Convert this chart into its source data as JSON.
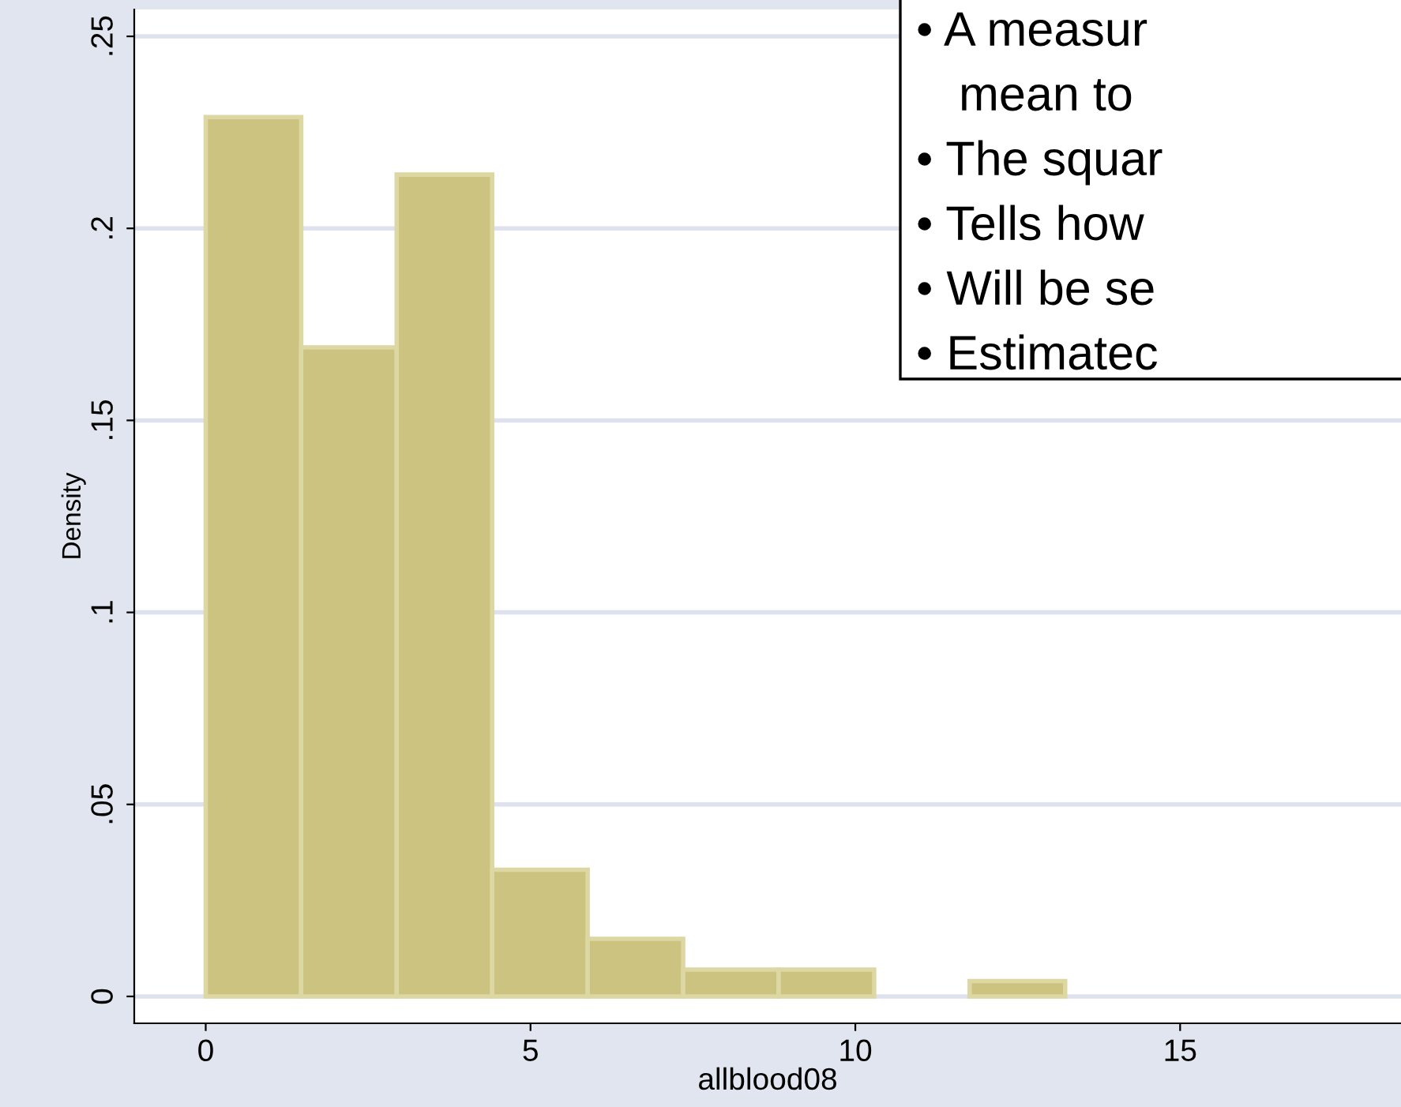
{
  "chart_data": {
    "type": "histogram",
    "xlabel": "allblood08",
    "ylabel": "Density",
    "bins": [
      0,
      1.47,
      2.94,
      4.41,
      5.88,
      7.35,
      8.82,
      10.29,
      11.76,
      13.23
    ],
    "values": [
      0.229,
      0.169,
      0.214,
      0.033,
      0.015,
      0.007,
      0.007,
      0,
      0.004
    ],
    "color": "#cbc37f",
    "xlim": [
      -1.1,
      18.4
    ],
    "xticks": [
      0,
      5,
      10,
      15
    ],
    "ylim": [
      -0.007,
      0.257
    ],
    "yticks": [
      {
        "value": 0,
        "label": "0"
      },
      {
        "value": 0.05,
        "label": ".05"
      },
      {
        "value": 0.1,
        "label": ".1"
      },
      {
        "value": 0.15,
        "label": ".15"
      },
      {
        "value": 0.2,
        "label": ".2"
      },
      {
        "value": 0.25,
        "label": ".25"
      }
    ],
    "grid": "y",
    "annotations": [
      "• A measur",
      "mean to",
      "• The squar",
      "• Tells how",
      "• Will be se",
      "• Estimatec"
    ]
  }
}
